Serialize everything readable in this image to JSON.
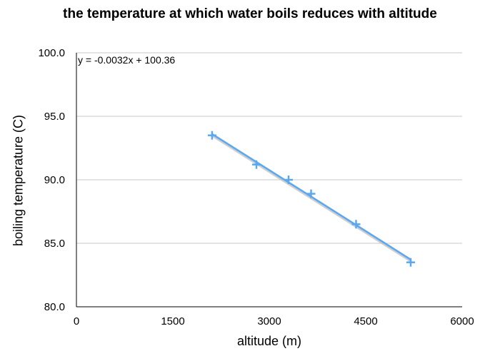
{
  "chart_data": {
    "type": "scatter",
    "title": "the temperature at which water boils reduces with altitude",
    "xlabel": "altitude (m)",
    "ylabel": "boiling temperature (C)",
    "xlim": [
      0,
      6000
    ],
    "ylim": [
      80,
      100
    ],
    "xticks": [
      "0",
      "1500",
      "3000",
      "4500",
      "6000"
    ],
    "yticks": [
      "80.0",
      "85.0",
      "90.0",
      "95.0",
      "100.0"
    ],
    "grid": "horizontal",
    "series": [
      {
        "marker": "plus",
        "color": "#5aa8f0",
        "points": [
          {
            "x": 2110,
            "y": 93.5
          },
          {
            "x": 2800,
            "y": 91.2
          },
          {
            "x": 3300,
            "y": 90.0
          },
          {
            "x": 3650,
            "y": 88.9
          },
          {
            "x": 4350,
            "y": 86.5
          },
          {
            "x": 5200,
            "y": 83.5
          }
        ]
      }
    ],
    "trendline": {
      "equation": "y = -0.0032x + 100.36",
      "slope": -0.0032,
      "intercept": 100.36,
      "x_range": [
        2110,
        5200
      ],
      "color": "#5aa8f0"
    }
  }
}
